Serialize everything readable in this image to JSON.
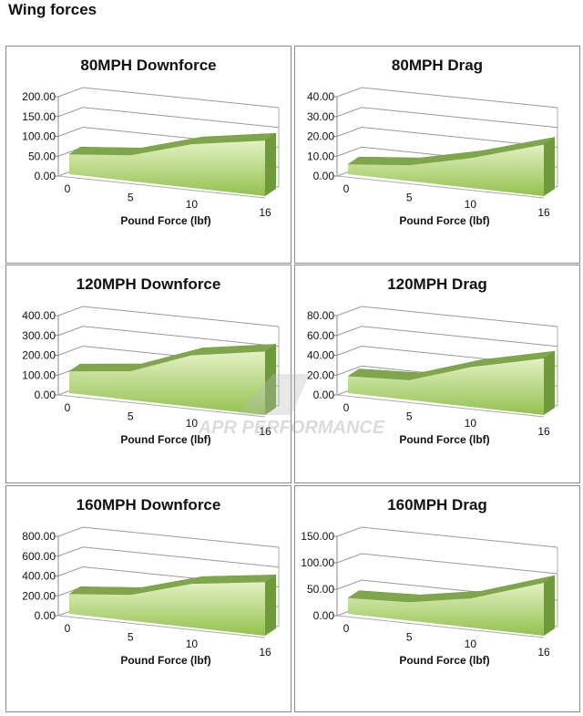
{
  "page_title": "Wing forces",
  "watermark": "APR PERFORMANCE",
  "chart_data": [
    {
      "type": "area",
      "title": "80MPH Downforce",
      "xlabel": "Pound Force (lbf)",
      "x": [
        0,
        5,
        10,
        16
      ],
      "values": [
        50,
        65,
        110,
        140
      ],
      "ylim": [
        0,
        200
      ],
      "yticks": [
        "0.00",
        "50.00",
        "100.00",
        "150.00",
        "200.00"
      ],
      "xticks": [
        "0",
        "5",
        "10",
        "16"
      ],
      "color": "#9ccc5a"
    },
    {
      "type": "area",
      "title": "80MPH Drag",
      "xlabel": "Pound Force (lbf)",
      "x": [
        0,
        5,
        10,
        16
      ],
      "values": [
        5,
        8,
        15,
        26
      ],
      "ylim": [
        0,
        40
      ],
      "yticks": [
        "0.00",
        "10.00",
        "20.00",
        "30.00",
        "40.00"
      ],
      "xticks": [
        "0",
        "5",
        "10",
        "16"
      ],
      "color": "#9ccc5a"
    },
    {
      "type": "area",
      "title": "120MPH Downforce",
      "xlabel": "Pound Force (lbf)",
      "x": [
        0,
        5,
        10,
        16
      ],
      "values": [
        110,
        145,
        260,
        320
      ],
      "ylim": [
        0,
        400
      ],
      "yticks": [
        "0.00",
        "100.00",
        "200.00",
        "300.00",
        "400.00"
      ],
      "xticks": [
        "0",
        "5",
        "10",
        "16"
      ],
      "color": "#9ccc5a"
    },
    {
      "type": "area",
      "title": "120MPH Drag",
      "xlabel": "Pound Force (lbf)",
      "x": [
        0,
        5,
        10,
        16
      ],
      "values": [
        17,
        20,
        40,
        57
      ],
      "ylim": [
        0,
        80
      ],
      "yticks": [
        "0.00",
        "20.00",
        "40.00",
        "60.00",
        "80.00"
      ],
      "xticks": [
        "0",
        "5",
        "10",
        "16"
      ],
      "color": "#9ccc5a"
    },
    {
      "type": "area",
      "title": "160MPH Downforce",
      "xlabel": "Pound Force (lbf)",
      "x": [
        0,
        5,
        10,
        16
      ],
      "values": [
        200,
        260,
        440,
        540
      ],
      "ylim": [
        0,
        800
      ],
      "yticks": [
        "0.00",
        "200.00",
        "400.00",
        "600.00",
        "800.00"
      ],
      "xticks": [
        "0",
        "5",
        "10",
        "16"
      ],
      "color": "#9ccc5a"
    },
    {
      "type": "area",
      "title": "160MPH Drag",
      "xlabel": "Pound Force (lbf)",
      "x": [
        0,
        5,
        10,
        16
      ],
      "values": [
        30,
        35,
        55,
        100
      ],
      "ylim": [
        0,
        150
      ],
      "yticks": [
        "0.00",
        "50.00",
        "100.00",
        "150.00"
      ],
      "xticks": [
        "0",
        "5",
        "10",
        "16"
      ],
      "color": "#9ccc5a"
    }
  ]
}
